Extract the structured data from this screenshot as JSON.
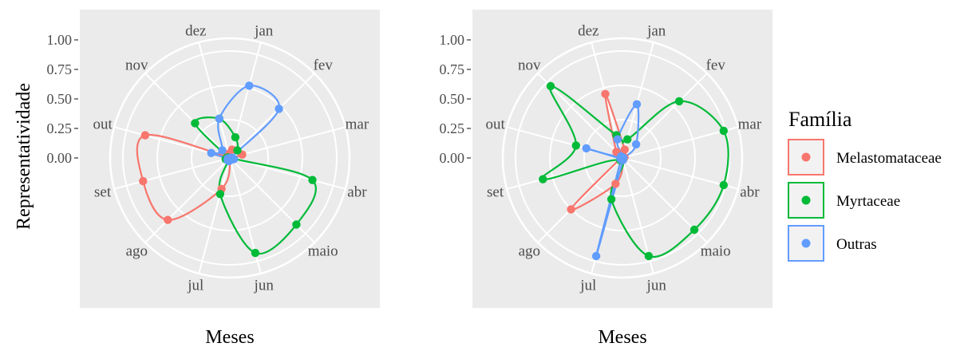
{
  "ylabel": "Representatividade",
  "legend": {
    "title": "Família",
    "entries": [
      {
        "name": "Melastomataceae",
        "color": "#F8766D"
      },
      {
        "name": "Myrtaceae",
        "color": "#00BA38"
      },
      {
        "name": "Outras",
        "color": "#619CFF"
      }
    ]
  },
  "chart_data": [
    {
      "type": "line",
      "coord": "polar",
      "xlabel": "Meses",
      "ylabel": "Representatividade",
      "categories": [
        "jan",
        "fev",
        "mar",
        "abr",
        "maio",
        "jun",
        "jul",
        "ago",
        "set",
        "out",
        "nov",
        "dez"
      ],
      "y_ticks": [
        "0.00",
        "0.25",
        "0.50",
        "0.75",
        "1.00"
      ],
      "ylim": [
        0,
        1
      ],
      "grid": true,
      "series": [
        {
          "name": "Melastomataceae",
          "values": [
            0.08,
            0.0,
            0.12,
            0.02,
            0.01,
            0.02,
            0.3,
            0.82,
            0.84,
            0.82,
            0.01,
            0.04
          ]
        },
        {
          "name": "Myrtaceae",
          "values": [
            0.2,
            0.1,
            0.01,
            0.8,
            0.88,
            0.92,
            0.35,
            0.01,
            0.04,
            0.02,
            0.46,
            0.38
          ]
        },
        {
          "name": "Outras",
          "values": [
            0.7,
            0.65,
            0.01,
            0.04,
            0.02,
            0.0,
            0.03,
            0.03,
            0.02,
            0.18,
            0.1,
            0.38
          ]
        }
      ]
    },
    {
      "type": "line",
      "coord": "polar",
      "xlabel": "Meses",
      "ylabel": "",
      "categories": [
        "jan",
        "fev",
        "mar",
        "abr",
        "maio",
        "jun",
        "jul",
        "ago",
        "set",
        "out",
        "nov",
        "dez"
      ],
      "y_ticks": [
        "0.00",
        "0.25",
        "0.50",
        "0.75",
        "1.00"
      ],
      "ylim": [
        0,
        1
      ],
      "grid": true,
      "series": [
        {
          "name": "Melastomataceae",
          "values": [
            0.08,
            0.01,
            0.02,
            0.0,
            0.01,
            0.02,
            0.25,
            0.68,
            0.02,
            0.01,
            0.08,
            0.62
          ]
        },
        {
          "name": "Myrtaceae",
          "values": [
            0.18,
            0.75,
            0.98,
            0.98,
            0.95,
            0.95,
            0.4,
            0.03,
            0.77,
            0.45,
            0.95,
            0.22
          ]
        },
        {
          "name": "Outras",
          "values": [
            0.52,
            0.18,
            0.01,
            0.0,
            0.01,
            0.02,
            0.95,
            0.02,
            0.02,
            0.35,
            0.02,
            0.18
          ]
        }
      ]
    }
  ]
}
